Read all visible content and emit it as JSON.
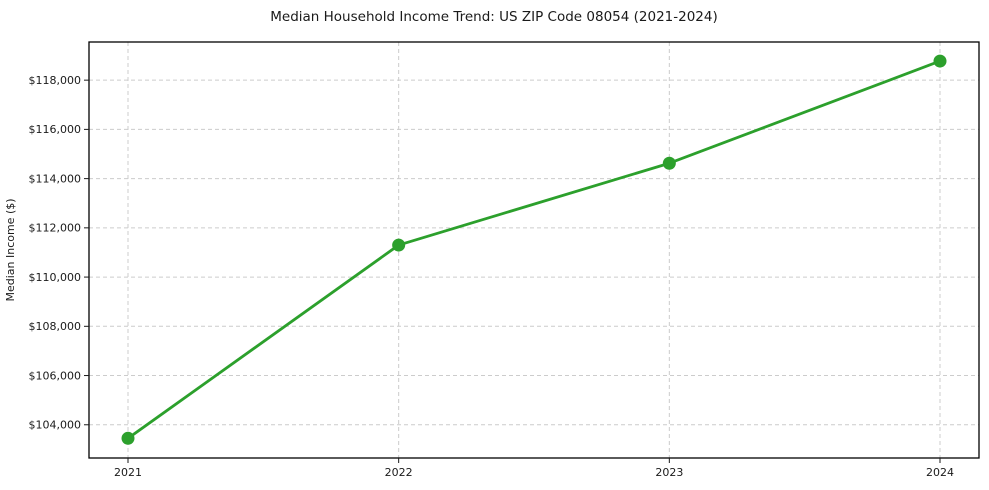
{
  "chart_data": {
    "type": "line",
    "title": "Median Household Income Trend: US ZIP Code 08054 (2021-2024)",
    "xlabel": "",
    "ylabel": "Median Income ($)",
    "categories": [
      "2021",
      "2022",
      "2023",
      "2024"
    ],
    "series": [
      {
        "values": [
          103450,
          111300,
          114625,
          118775
        ],
        "color": "#2ca02c",
        "marker": "circle"
      }
    ],
    "ylim": [
      102650,
      119550
    ],
    "yticks": [
      104000,
      106000,
      108000,
      110000,
      112000,
      114000,
      116000,
      118000
    ],
    "ytick_labels": [
      "$104,000",
      "$106,000",
      "$108,000",
      "$110,000",
      "$112,000",
      "$114,000",
      "$116,000",
      "$118,000"
    ],
    "grid": {
      "show": true,
      "style": "dashed",
      "color": "#cccccc"
    },
    "legend_position": "none",
    "background_color": "#ffffff"
  }
}
